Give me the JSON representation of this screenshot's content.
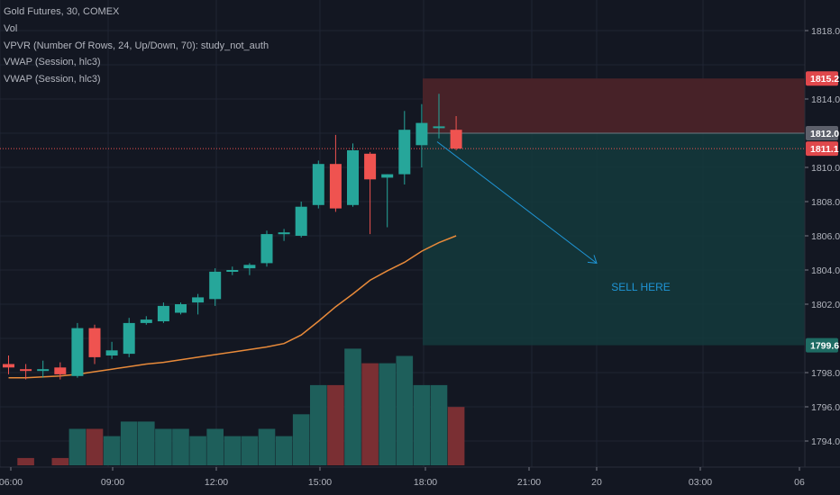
{
  "legend": [
    "Gold Futures, 30, COMEX",
    "Vol",
    "VPVR (Number Of Rows, 24, Up/Down, 70): study_not_auth",
    "VWAP (Session, hlc3)",
    "VWAP (Session, hlc3)"
  ],
  "annotation_text": "SELL HERE",
  "colors": {
    "background": "#131722",
    "grid": "#1f2433",
    "bull": "#26a69a",
    "bear": "#ef5350",
    "bull_volume": "#1e5f5b",
    "bear_volume": "#7a2f33",
    "vwap": "#e88a3a",
    "stop_zone": "#4a2329",
    "target_zone": "#143a3c",
    "arrow": "#1f95d6",
    "axis_text": "#b2b5be",
    "label_teal": "#1e6b63",
    "label_red": "#e0484c"
  },
  "chart_data": {
    "type": "candlestick",
    "symbol": "Gold Futures, 30, COMEX",
    "ylim": [
      1792.2,
      1819.8
    ],
    "y_ticks": [
      "1818.0",
      "1814.0",
      "1810.0",
      "1808.0",
      "1806.0",
      "1804.0",
      "1802.0",
      "1798.0",
      "1796.0",
      "1794.0"
    ],
    "x_ticks": [
      "06:00",
      "09:00",
      "12:00",
      "15:00",
      "18:00",
      "21:00",
      "20",
      "03:00",
      "06"
    ],
    "price_labels": [
      {
        "text": "1815.2",
        "value": 1815.2,
        "color": "red"
      },
      {
        "text": "1812.0",
        "value": 1812.0,
        "color": "gray"
      },
      {
        "text": "1811.1",
        "value": 1811.1,
        "color": "red"
      },
      {
        "text": "1799.6",
        "value": 1799.6,
        "color": "teal"
      }
    ],
    "last_price": 1811.1,
    "candles": [
      {
        "o": 1798.5,
        "h": 1799.0,
        "l": 1797.9,
        "c": 1798.3,
        "v": 0
      },
      {
        "o": 1798.2,
        "h": 1798.5,
        "l": 1797.6,
        "c": 1798.1,
        "v": 1
      },
      {
        "o": 1798.1,
        "h": 1798.7,
        "l": 1797.7,
        "c": 1798.2,
        "v": 0
      },
      {
        "o": 1798.3,
        "h": 1798.6,
        "l": 1797.6,
        "c": 1797.9,
        "v": 1
      },
      {
        "o": 1797.8,
        "h": 1800.9,
        "l": 1797.7,
        "c": 1800.6,
        "v": 5
      },
      {
        "o": 1800.6,
        "h": 1800.8,
        "l": 1798.5,
        "c": 1798.9,
        "v": 5
      },
      {
        "o": 1799.0,
        "h": 1799.8,
        "l": 1798.8,
        "c": 1799.3,
        "v": 4
      },
      {
        "o": 1799.1,
        "h": 1801.2,
        "l": 1798.9,
        "c": 1800.9,
        "v": 6
      },
      {
        "o": 1800.9,
        "h": 1801.3,
        "l": 1800.8,
        "c": 1801.1,
        "v": 6
      },
      {
        "o": 1801.0,
        "h": 1802.1,
        "l": 1800.9,
        "c": 1801.9,
        "v": 5
      },
      {
        "o": 1801.5,
        "h": 1802.1,
        "l": 1801.4,
        "c": 1802.0,
        "v": 5
      },
      {
        "o": 1802.1,
        "h": 1802.6,
        "l": 1801.4,
        "c": 1802.4,
        "v": 4
      },
      {
        "o": 1802.3,
        "h": 1804.1,
        "l": 1801.9,
        "c": 1803.9,
        "v": 5
      },
      {
        "o": 1803.9,
        "h": 1804.2,
        "l": 1803.7,
        "c": 1804.0,
        "v": 4
      },
      {
        "o": 1804.1,
        "h": 1804.4,
        "l": 1803.7,
        "c": 1804.3,
        "v": 4
      },
      {
        "o": 1804.4,
        "h": 1806.3,
        "l": 1804.2,
        "c": 1806.1,
        "v": 5
      },
      {
        "o": 1806.1,
        "h": 1806.4,
        "l": 1805.7,
        "c": 1806.2,
        "v": 4
      },
      {
        "o": 1806.0,
        "h": 1808.0,
        "l": 1805.9,
        "c": 1807.7,
        "v": 7
      },
      {
        "o": 1807.8,
        "h": 1810.4,
        "l": 1807.6,
        "c": 1810.2,
        "v": 11
      },
      {
        "o": 1810.2,
        "h": 1811.9,
        "l": 1807.4,
        "c": 1807.6,
        "v": 11
      },
      {
        "o": 1807.8,
        "h": 1811.4,
        "l": 1807.7,
        "c": 1811.0,
        "v": 16
      },
      {
        "o": 1810.8,
        "h": 1810.9,
        "l": 1806.1,
        "c": 1809.3,
        "v": 14
      },
      {
        "o": 1809.4,
        "h": 1809.6,
        "l": 1806.5,
        "c": 1809.6,
        "v": 14
      },
      {
        "o": 1809.6,
        "h": 1813.3,
        "l": 1809.0,
        "c": 1812.2,
        "v": 15
      },
      {
        "o": 1811.3,
        "h": 1813.7,
        "l": 1810.0,
        "c": 1812.6,
        "v": 11
      },
      {
        "o": 1812.4,
        "h": 1814.3,
        "l": 1811.7,
        "c": 1812.4,
        "v": 11
      },
      {
        "o": 1812.2,
        "h": 1813.0,
        "l": 1811.0,
        "c": 1811.1,
        "v": 8
      }
    ],
    "vwap": [
      1797.7,
      1797.7,
      1797.75,
      1797.8,
      1797.9,
      1798.05,
      1798.2,
      1798.35,
      1798.5,
      1798.6,
      1798.75,
      1798.9,
      1799.05,
      1799.2,
      1799.35,
      1799.5,
      1799.7,
      1800.2,
      1801.0,
      1801.85,
      1802.6,
      1803.4,
      1803.95,
      1804.45,
      1805.1,
      1805.6,
      1806.0
    ],
    "position": {
      "direction": "short",
      "entry": 1812.0,
      "stop": 1815.2,
      "target": 1799.6,
      "annotation": "SELL HERE"
    }
  }
}
